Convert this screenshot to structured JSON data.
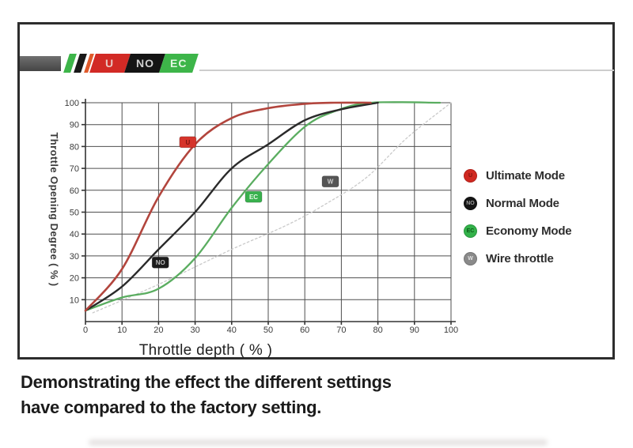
{
  "header_badge": {
    "segments": [
      {
        "short": "U",
        "color": "#d22a25",
        "text": "#e9c6c0"
      },
      {
        "short": "NO",
        "color": "#141414",
        "text": "#cfcfcf"
      },
      {
        "short": "EC",
        "color": "#3db549",
        "text": "#e4f6e2"
      }
    ]
  },
  "chart_data": {
    "type": "line",
    "title": "",
    "xlabel": "Throttle depth ( % )",
    "ylabel": "Throttle Opening Degree ( % )",
    "xlim": [
      0,
      100
    ],
    "ylim": [
      0,
      100
    ],
    "xticks": [
      0,
      10,
      20,
      30,
      40,
      50,
      60,
      70,
      80,
      90,
      100
    ],
    "yticks": [
      10,
      20,
      30,
      40,
      50,
      60,
      70,
      80,
      90,
      100
    ],
    "grid": true,
    "legend_position": "right",
    "series": [
      {
        "name": "Wire throttle",
        "short": "W",
        "color": "#c9c9c9",
        "style": "dotted",
        "points": [
          [
            2,
            4
          ],
          [
            20,
            17
          ],
          [
            40,
            33
          ],
          [
            55,
            44
          ],
          [
            66,
            54
          ],
          [
            77,
            66
          ],
          [
            88,
            84
          ],
          [
            100,
            100
          ]
        ]
      },
      {
        "name": "Economy Mode",
        "short": "EC",
        "color": "#5aad60",
        "style": "solid",
        "points": [
          [
            0,
            5
          ],
          [
            10,
            11
          ],
          [
            20,
            15
          ],
          [
            30,
            29
          ],
          [
            40,
            52
          ],
          [
            50,
            72
          ],
          [
            60,
            89
          ],
          [
            68,
            96
          ],
          [
            78,
            100
          ],
          [
            97,
            100
          ]
        ]
      },
      {
        "name": "Normal Mode",
        "short": "NO",
        "color": "#2a2a2a",
        "style": "solid",
        "points": [
          [
            0,
            5
          ],
          [
            10,
            16
          ],
          [
            20,
            33
          ],
          [
            30,
            50
          ],
          [
            40,
            70
          ],
          [
            50,
            81
          ],
          [
            60,
            92
          ],
          [
            70,
            97
          ],
          [
            80,
            100
          ]
        ]
      },
      {
        "name": "Ultimate Mode",
        "short": "U",
        "color": "#b2453d",
        "style": "solid",
        "points": [
          [
            0,
            5
          ],
          [
            10,
            24
          ],
          [
            20,
            57
          ],
          [
            30,
            81
          ],
          [
            40,
            93
          ],
          [
            50,
            97.5
          ],
          [
            60,
            99.5
          ],
          [
            68,
            100
          ],
          [
            78,
            100
          ]
        ]
      }
    ],
    "markers": [
      {
        "short": "U",
        "x": 28,
        "y": 82,
        "color": "#d5342b",
        "text_color": "#7e1410"
      },
      {
        "short": "NO",
        "x": 20.5,
        "y": 27,
        "color": "#1c1c1c",
        "text_color": "#b9b9b9"
      },
      {
        "short": "EC",
        "x": 46,
        "y": 57,
        "color": "#39b14e",
        "text_color": "#eafbe8"
      },
      {
        "short": "W",
        "x": 67,
        "y": 64,
        "color": "#555555",
        "text_color": "#cfcfcf"
      }
    ]
  },
  "legend": {
    "items": [
      {
        "label": "Ultimate Mode",
        "short": "U",
        "color": "#d02820",
        "text": "#7d120f"
      },
      {
        "label": "Normal Mode",
        "short": "NO",
        "color": "#151515",
        "text": "#9e9e9e"
      },
      {
        "label": "Economy Mode",
        "short": "EC",
        "color": "#33b24a",
        "text": "#0e5c1a"
      },
      {
        "label": "Wire throttle",
        "short": "W",
        "color": "#8a8a8a",
        "text": "#e2e2e2"
      }
    ]
  },
  "caption": {
    "line1": "Demonstrating the effect the different settings",
    "line2": "have compared to the factory setting."
  }
}
